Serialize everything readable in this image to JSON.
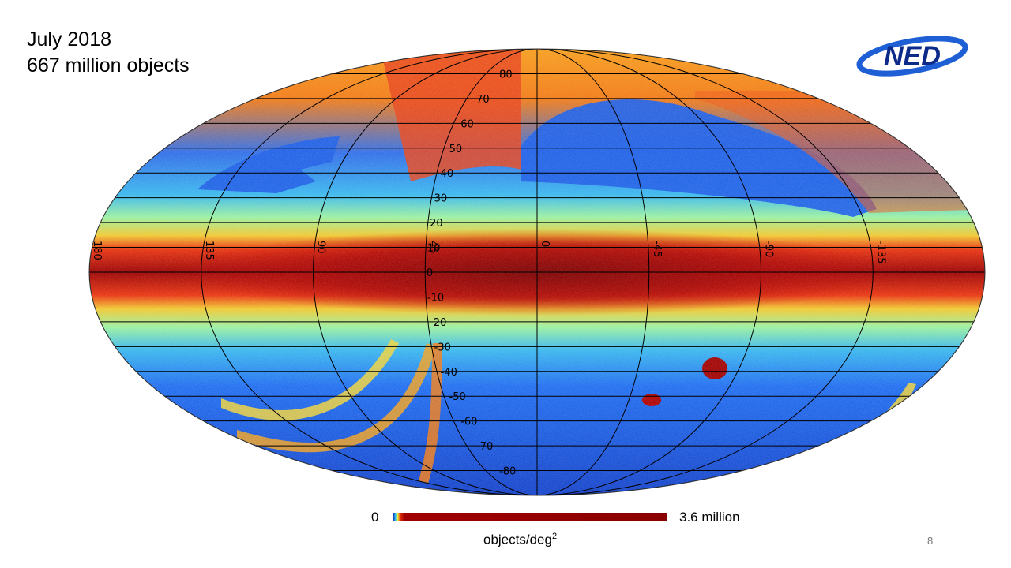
{
  "slide": {
    "title_line1": "July 2018",
    "title_line2": "667 million objects",
    "page_number": "8"
  },
  "logo": {
    "text": "NED",
    "colors": {
      "ring": "#1f5fd6",
      "text": "#0b2a8a"
    }
  },
  "map": {
    "projection": "aitoff",
    "longitude_labels": [
      "180",
      "135",
      "90",
      "45",
      "0",
      "-45",
      "-90",
      "-135"
    ],
    "latitude_labels": [
      "80",
      "70",
      "60",
      "50",
      "40",
      "30",
      "20",
      "10",
      "0",
      "-10",
      "-20",
      "-30",
      "-40",
      "-50",
      "-60",
      "-70",
      "-80"
    ],
    "colormap": [
      "#0a2fb5",
      "#1e6cf0",
      "#39c2f0",
      "#8ff0b0",
      "#f2f03a",
      "#f7a11c",
      "#e8320e",
      "#a00000",
      "#7a0000"
    ]
  },
  "colorbar": {
    "min_label": "0",
    "max_label": "3.6 million",
    "unit_text": "objects/deg",
    "unit_exponent": "2"
  }
}
